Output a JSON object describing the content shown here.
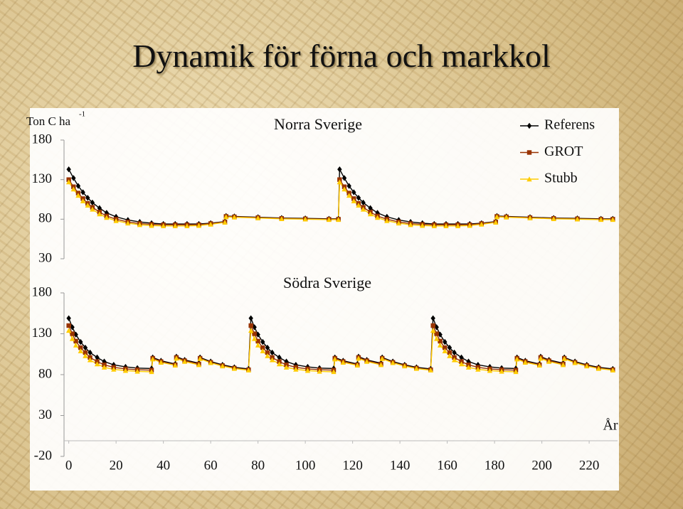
{
  "slide_title": "Dynamik för förna och markkol",
  "chart_data": [
    {
      "type": "line",
      "title": "Norra Sverige",
      "y_label": "Ton C ha",
      "y_label_sup": "-1",
      "xlim": [
        -2,
        232
      ],
      "ylim": [
        30,
        180
      ],
      "yticks": [
        30,
        80,
        130,
        180
      ],
      "legend": "top-right",
      "x": [
        0,
        2,
        4,
        6,
        8,
        10,
        13,
        16,
        20,
        25,
        30,
        35,
        40,
        45,
        50,
        55,
        60,
        66,
        66.5,
        70,
        80,
        90,
        100,
        110,
        114,
        114.5,
        116.5,
        118.5,
        120.5,
        122.5,
        124.5,
        127.5,
        130.5,
        134.5,
        139.5,
        144.5,
        149.5,
        154.5,
        159.5,
        164.5,
        169.5,
        174.5,
        180.5,
        181,
        185,
        195,
        205,
        215,
        225,
        230
      ],
      "series": [
        {
          "name": "Referens",
          "color": "#000000",
          "marker": "diamond",
          "values": [
            143,
            132,
            122,
            114,
            107,
            101,
            94,
            88,
            83,
            79,
            76.5,
            75,
            74,
            74,
            74,
            74,
            75,
            77,
            84,
            83.5,
            82.5,
            81.5,
            81,
            80.5,
            80.5,
            143,
            132,
            122,
            114,
            107,
            101,
            94,
            88,
            83,
            79,
            76.5,
            75,
            74,
            74,
            74,
            74,
            75,
            77,
            84,
            83.5,
            82.5,
            81.5,
            81,
            80.5,
            80.5
          ]
        },
        {
          "name": "GROT",
          "color": "#993300",
          "marker": "square",
          "values": [
            130,
            121,
            113,
            106,
            100,
            95,
            89,
            84,
            80,
            76.5,
            74.5,
            73.5,
            73,
            73,
            73,
            73,
            74.5,
            76.5,
            83.5,
            83,
            82,
            81,
            80.5,
            80,
            80,
            130,
            121,
            113,
            106,
            100,
            95,
            89,
            84,
            80,
            76.5,
            74.5,
            73.5,
            73,
            73,
            73,
            73,
            74.5,
            76.5,
            83.5,
            83,
            82,
            81,
            80.5,
            80,
            80
          ]
        },
        {
          "name": "Stubb",
          "color": "#ffcc00",
          "marker": "triangle",
          "values": [
            127,
            118,
            110,
            103,
            97.5,
            92.5,
            86.5,
            82,
            78,
            75,
            73,
            72,
            71.5,
            71.5,
            71.5,
            72,
            73.5,
            76,
            83,
            82.5,
            81.5,
            80.5,
            80,
            79.5,
            79.5,
            127,
            118,
            110,
            103,
            97.5,
            92.5,
            86.5,
            82,
            78,
            75,
            73,
            72,
            71.5,
            71.5,
            71.5,
            72,
            73.5,
            76,
            83,
            82.5,
            81.5,
            80.5,
            80,
            79.5,
            79.5
          ]
        }
      ]
    },
    {
      "type": "line",
      "title": "Södra Sverige",
      "x_label": "År",
      "xlim": [
        -2,
        232
      ],
      "xticks": [
        0,
        20,
        40,
        60,
        80,
        100,
        120,
        140,
        160,
        180,
        200,
        220
      ],
      "ylim": [
        -20,
        180
      ],
      "yticks": [
        -20,
        30,
        80,
        130,
        180
      ],
      "x": [
        0,
        1.5,
        3,
        5,
        7,
        9,
        12,
        15,
        19,
        24,
        29,
        35,
        35.5,
        39,
        45,
        45.5,
        49,
        55,
        55.5,
        60,
        65,
        70,
        76,
        77,
        78.5,
        80,
        82,
        84,
        86,
        89,
        92,
        96,
        101,
        106,
        112,
        112.5,
        116,
        122,
        122.5,
        126,
        132,
        132.5,
        137,
        142,
        147,
        153,
        154,
        155.5,
        157,
        159,
        161,
        163,
        166,
        169,
        173,
        178,
        183,
        189,
        189.5,
        193,
        199,
        199.5,
        203,
        209,
        209.5,
        214,
        219,
        224,
        230
      ],
      "series": [
        {
          "color": "#000000",
          "marker": "diamond",
          "values": [
            149,
            138,
            129,
            120,
            113,
            107,
            101,
            96,
            92,
            89.5,
            88,
            87.5,
            101,
            97,
            93,
            102,
            98,
            94,
            101,
            96,
            92,
            89,
            87,
            149,
            138,
            129,
            120,
            113,
            107,
            101,
            96,
            92,
            89.5,
            88,
            87.5,
            101,
            97,
            93,
            102,
            98,
            94,
            101,
            96,
            92,
            89,
            87,
            149,
            138,
            129,
            120,
            113,
            107,
            101,
            96,
            92,
            89.5,
            88,
            87.5,
            101,
            97,
            93,
            102,
            98,
            94,
            101,
            96,
            92,
            89,
            87
          ]
        },
        {
          "color": "#993300",
          "marker": "square",
          "values": [
            140,
            130,
            121,
            113,
            107,
            101,
            96,
            92,
            89,
            87,
            86,
            85.5,
            100,
            96,
            92,
            101,
            97,
            93,
            100,
            95,
            91,
            88,
            86,
            140,
            130,
            121,
            113,
            107,
            101,
            96,
            92,
            89,
            87,
            86,
            85.5,
            100,
            96,
            92,
            101,
            97,
            93,
            100,
            95,
            91,
            88,
            86,
            140,
            130,
            121,
            113,
            107,
            101,
            96,
            92,
            89,
            87,
            86,
            85.5,
            100,
            96,
            92,
            101,
            97,
            93,
            100,
            95,
            91,
            88,
            86
          ]
        },
        {
          "color": "#ffcc00",
          "marker": "triangle",
          "values": [
            134,
            124,
            116,
            109,
            103,
            98,
            93,
            89,
            86.5,
            85,
            84,
            83.5,
            99,
            95,
            91.5,
            100,
            96,
            92,
            99.5,
            94.5,
            90.5,
            87.5,
            85.5,
            134,
            124,
            116,
            109,
            103,
            98,
            93,
            89,
            86.5,
            85,
            84,
            83.5,
            99,
            95,
            91.5,
            100,
            96,
            92,
            99.5,
            94.5,
            90.5,
            87.5,
            85.5,
            134,
            124,
            116,
            109,
            103,
            98,
            93,
            89,
            86.5,
            85,
            84,
            83.5,
            99,
            95,
            91.5,
            100,
            96,
            92,
            99.5,
            94.5,
            90.5,
            87.5,
            85.5
          ]
        }
      ]
    }
  ]
}
